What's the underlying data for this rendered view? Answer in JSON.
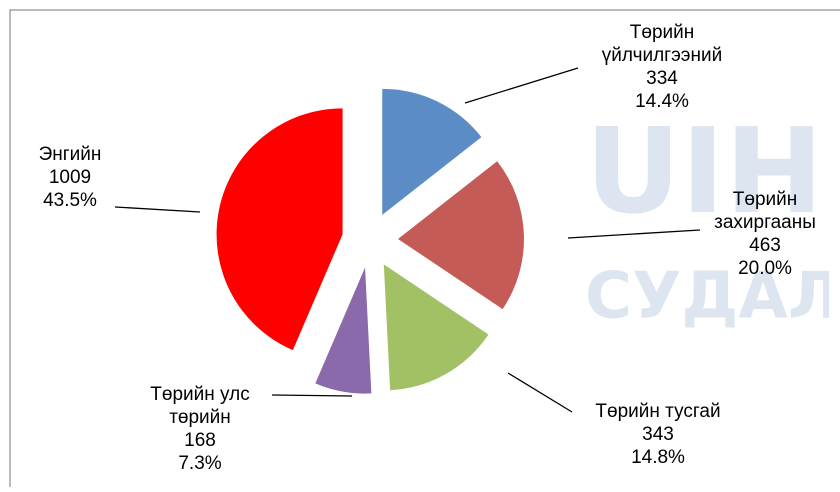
{
  "chart_data": {
    "type": "pie",
    "categories": [
      [
        "Төрийн",
        "үйлчилгээний"
      ],
      [
        "Төрийн",
        "захиргааны"
      ],
      [
        "Төрийн тусгай"
      ],
      [
        "Төрийн улс",
        "төрийн"
      ],
      [
        "Энгийн"
      ]
    ],
    "values": [
      334,
      463,
      343,
      168,
      1009
    ],
    "percents": [
      14.4,
      20.0,
      14.8,
      7.3,
      43.5
    ],
    "percent_labels": [
      "14.4%",
      "20.0%",
      "14.8%",
      "7.3%",
      "43.5%"
    ],
    "colors": [
      "#5b8cc6",
      "#c45b56",
      "#a2c164",
      "#8a6aaa",
      "#ff0000"
    ],
    "watermark": [
      "UIH.M",
      "СУДАЛГААН"
    ]
  }
}
